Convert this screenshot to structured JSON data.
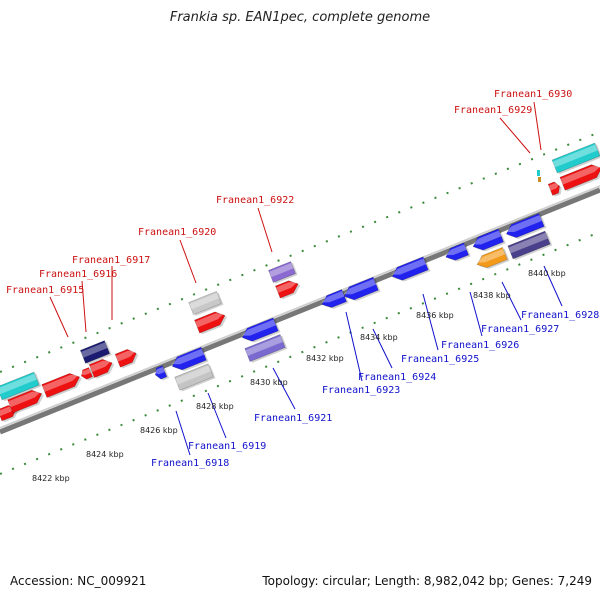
{
  "title": "Frankia sp. EAN1pec, complete genome",
  "footer": {
    "accession": "Accession: NC_009921",
    "summary": "Topology: circular; Length: 8,982,042 bp; Genes: 7,249"
  },
  "colors": {
    "forward_gene": "#ee1111",
    "reverse_gene": "#2222ee",
    "forward_label": "#cc1111",
    "reverse_label": "#1111cc",
    "backbone": "#888888",
    "dots": "#3a8a3a"
  },
  "scale_labels": [
    "8422 kbp",
    "8424 kbp",
    "8426 kbp",
    "8428 kbp",
    "8430 kbp",
    "8432 kbp",
    "8434 kbp",
    "8436 kbp",
    "8438 kbp",
    "8440 kbp"
  ],
  "forward_labels": [
    "Franean1_6915",
    "Franean1_6916",
    "Franean1_6917",
    "Franean1_6920",
    "Franean1_6922",
    "Franean1_6929",
    "Franean1_6930"
  ],
  "reverse_labels": [
    "Franean1_6918",
    "Franean1_6919",
    "Franean1_6921",
    "Franean1_6923",
    "Franean1_6924",
    "Franean1_6925",
    "Franean1_6926",
    "Franean1_6927",
    "Franean1_6928"
  ]
}
